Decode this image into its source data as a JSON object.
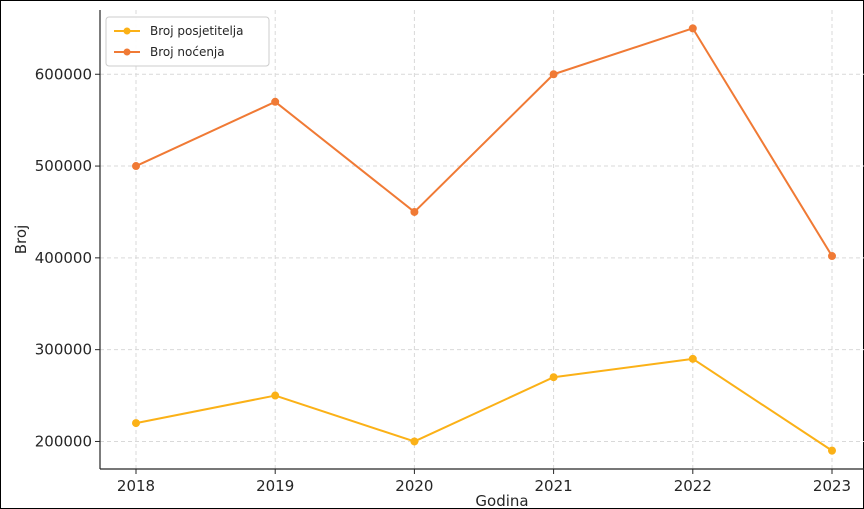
{
  "chart_data": {
    "type": "line",
    "title": "",
    "xlabel": "Godina",
    "ylabel": "Broj",
    "x": [
      "2018",
      "2019",
      "2020",
      "2021",
      "2022",
      "2023"
    ],
    "ylim": [
      170000,
      670000
    ],
    "yticks": [
      "200000",
      "300000",
      "400000",
      "500000",
      "600000"
    ],
    "ytick_values": [
      200000,
      300000,
      400000,
      500000,
      600000
    ],
    "grid": true,
    "legend_position": "top-left",
    "series": [
      {
        "name": "Broj posjetitelja",
        "color": "#FBB117",
        "values": [
          220000,
          250000,
          200000,
          270000,
          290000,
          190000
        ]
      },
      {
        "name": "Broj noćenja",
        "color": "#F07A35",
        "values": [
          500000,
          570000,
          450000,
          600000,
          650000,
          402000
        ]
      }
    ]
  }
}
